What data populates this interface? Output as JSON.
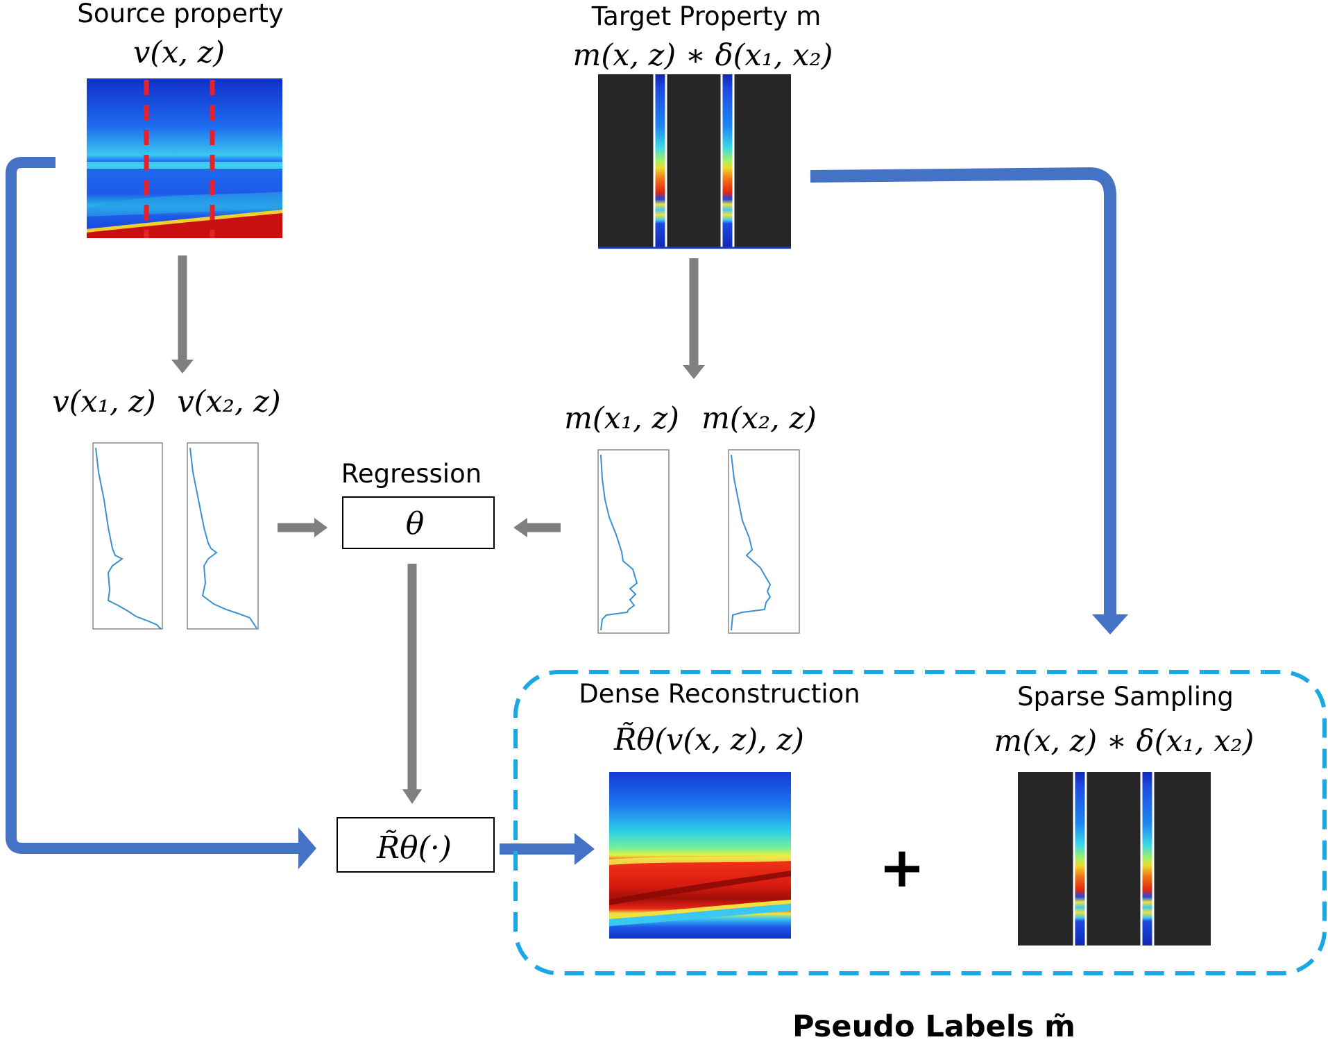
{
  "labels": {
    "source_title": "Source property",
    "source_formula": "v(x, z)",
    "target_title": "Target Property m",
    "target_formula": "m(x, z) ∗ δ(x₁, x₂)",
    "v_x1": "v(x₁, z)",
    "v_x2": "v(x₂, z)",
    "m_x1": "m(x₁, z)",
    "m_x2": "m(x₂, z)",
    "regression_title": "Regression",
    "theta": "θ",
    "r_operator": "R̃θ(·)",
    "dense_title": "Dense Reconstruction",
    "dense_formula": "R̃θ(v(x, z), z)",
    "sparse_title": "Sparse Sampling",
    "sparse_formula": "m(x, z) ∗ δ(x₁, x₂)",
    "plus": "+",
    "pseudo_labels": "Pseudo Labels m̃"
  },
  "colors": {
    "blue_arrow": "#4472C4",
    "gray_arrow": "#7F7F7F",
    "dashed_border": "#1AA7E6",
    "dark_panel": "#262626",
    "profile_line": "#3A8FD0",
    "red_dash": "#E8202A"
  }
}
